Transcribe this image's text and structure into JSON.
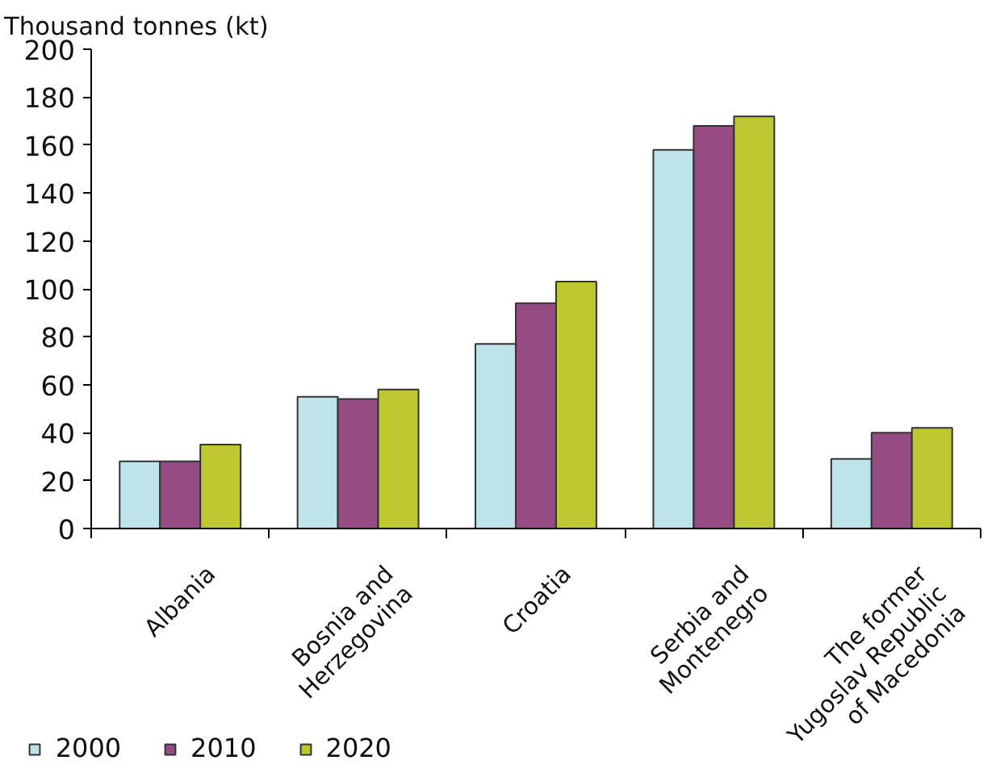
{
  "chart_data": {
    "type": "bar",
    "ylabel": "Thousand tonnes (kt)",
    "categories": [
      "Albania",
      "Bosnia and\nHerzegovina",
      "Croatia",
      "Serbia and\nMontenegro",
      "The former\nYugoslav Republic\nof Macedonia"
    ],
    "series": [
      {
        "name": "2000",
        "color": "#bee3ea",
        "values": [
          28,
          55,
          77,
          158,
          29
        ]
      },
      {
        "name": "2010",
        "color": "#954c82",
        "values": [
          28,
          54,
          94,
          168,
          40
        ]
      },
      {
        "name": "2020",
        "color": "#bec831",
        "values": [
          35,
          58,
          103,
          172,
          42
        ]
      }
    ],
    "ylim": [
      0,
      200
    ],
    "yticks": [
      0,
      20,
      40,
      60,
      80,
      100,
      120,
      140,
      160,
      180,
      200
    ],
    "grid": false,
    "legend": "bottom left"
  }
}
